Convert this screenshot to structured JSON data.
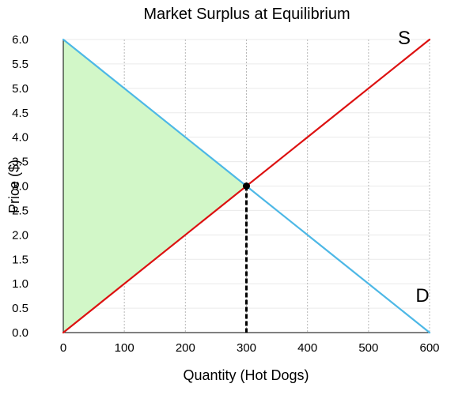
{
  "chart_data": {
    "type": "line",
    "title": "Market Surplus at Equilibrium",
    "xlabel": "Quantity (Hot Dogs)",
    "ylabel": "Price ($)",
    "xlim": [
      0,
      600
    ],
    "ylim": [
      0,
      6
    ],
    "x_ticks": [
      0,
      100,
      200,
      300,
      400,
      500,
      600
    ],
    "x_tick_labels": [
      "0",
      "100",
      "200",
      "300",
      "400",
      "500",
      "600"
    ],
    "y_ticks": [
      0,
      0.5,
      1,
      1.5,
      2,
      2.5,
      3,
      3.5,
      4,
      4.5,
      5,
      5.5,
      6
    ],
    "y_tick_labels": [
      "0.0",
      "0.5",
      "1.0",
      "1.5",
      "2.0",
      "2.5",
      "3.0",
      "3.5",
      "4.0",
      "4.5",
      "5.0",
      "5.5",
      "6.0"
    ],
    "grid": {
      "vertical": "dotted",
      "horizontal": "light"
    },
    "series": [
      {
        "name": "S",
        "color": "#dd1111",
        "points": [
          [
            0,
            0
          ],
          [
            600,
            6
          ]
        ]
      },
      {
        "name": "D",
        "color": "#4db8e6",
        "points": [
          [
            0,
            6
          ],
          [
            600,
            0
          ]
        ]
      }
    ],
    "equilibrium": {
      "x": 300,
      "y": 3,
      "marker_color": "#000000",
      "dropline_style": "dashed"
    },
    "surplus_region": {
      "color": "#d2f7c8",
      "points": [
        [
          0,
          0
        ],
        [
          0,
          6
        ],
        [
          300,
          3
        ]
      ]
    }
  }
}
